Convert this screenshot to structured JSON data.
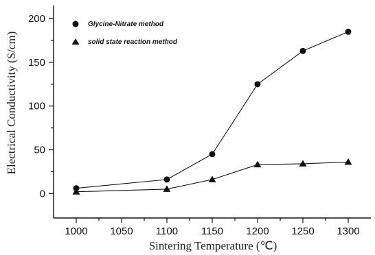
{
  "chart_data": {
    "type": "line",
    "title": "",
    "xlabel": "Sintering Temperature (℃)",
    "ylabel": "Electrical Conductivity (S/cm)",
    "xlim": [
      975,
      1325
    ],
    "ylim": [
      -28,
      215
    ],
    "xticks": [
      1000,
      1050,
      1100,
      1150,
      1200,
      1250,
      1300
    ],
    "yticks": [
      0,
      50,
      100,
      150,
      200
    ],
    "xtick_labels": [
      "1000",
      "1050",
      "1100",
      "1150",
      "1200",
      "1250",
      "1300"
    ],
    "ytick_labels": [
      "0",
      "50",
      "100",
      "150",
      "200"
    ],
    "grid": false,
    "legend_position": "top-left",
    "series": [
      {
        "name": "Glycine-Nitrate method",
        "marker": "circle",
        "x": [
          1000,
          1100,
          1150,
          1200,
          1250,
          1300
        ],
        "values": [
          6,
          16,
          45,
          125,
          163,
          185
        ]
      },
      {
        "name": "solid state reaction method",
        "marker": "triangle",
        "x": [
          1000,
          1100,
          1150,
          1200,
          1250,
          1300
        ],
        "values": [
          2,
          5,
          16,
          33,
          34,
          36
        ]
      }
    ]
  }
}
